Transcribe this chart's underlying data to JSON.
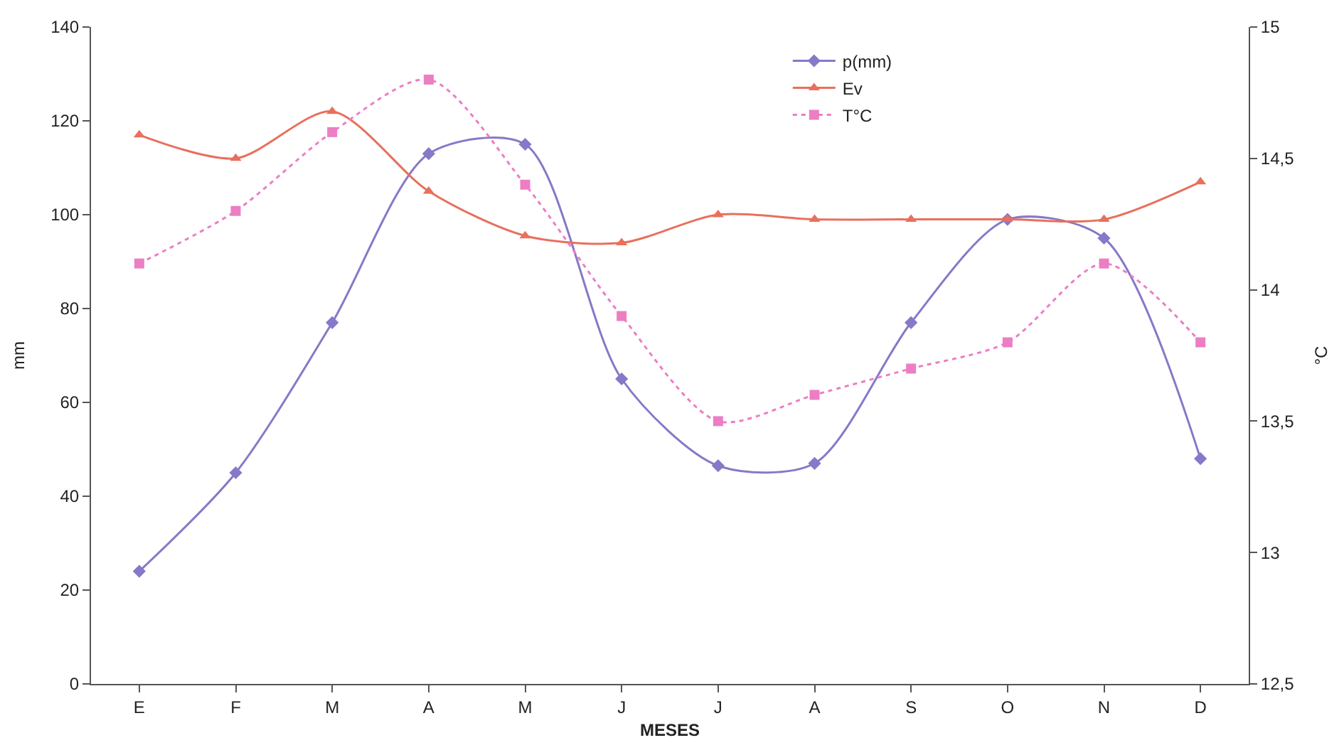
{
  "chart_data": {
    "type": "line",
    "xlabel": "MESES",
    "ylabel": "mm",
    "y2label": "°C",
    "categories": [
      "E",
      "F",
      "M",
      "A",
      "M",
      "J",
      "J",
      "A",
      "S",
      "O",
      "N",
      "D"
    ],
    "series": [
      {
        "name": "p(mm)",
        "color": "#8878c8",
        "marker": "diamond",
        "line_style": "solid",
        "values": [
          24,
          45,
          77,
          113,
          115,
          65,
          46.5,
          47,
          77,
          99,
          95,
          48
        ]
      },
      {
        "name": "Ev",
        "color": "#e8705c",
        "marker": "triangle",
        "line_style": "solid",
        "values": [
          117,
          112,
          122,
          105,
          95.5,
          94,
          100,
          99,
          99,
          99,
          99,
          107
        ]
      },
      {
        "name": "T°C",
        "color": "#ec7ec4",
        "marker": "square",
        "line_style": "dotted",
        "axis": "y2",
        "values": [
          14.1,
          14.3,
          14.6,
          14.8,
          14.4,
          13.9,
          13.5,
          13.6,
          13.7,
          13.8,
          14.1,
          13.8
        ]
      }
    ],
    "ylim": [
      0,
      140
    ],
    "yticks": [
      0,
      20,
      40,
      60,
      80,
      100,
      120,
      140
    ],
    "y2lim": [
      12.5,
      15
    ],
    "y2ticks": [
      {
        "value": 12.5,
        "label": "12,5"
      },
      13,
      {
        "value": 13.5,
        "label": "13,5"
      },
      14,
      {
        "value": 14.5,
        "label": "14,5"
      },
      15
    ],
    "legend": "top right"
  }
}
